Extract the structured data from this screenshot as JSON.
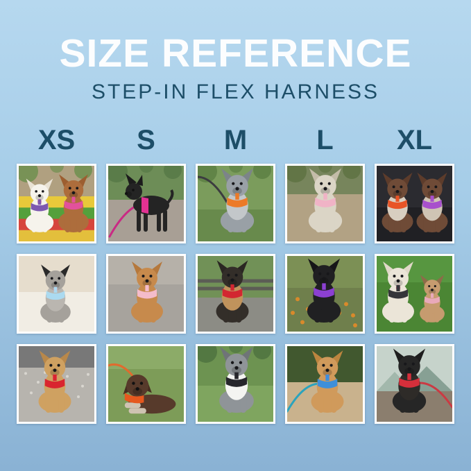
{
  "background": {
    "top": "#b6d8ef",
    "middle": "#a6cde8",
    "bottom": "#8ab2d4"
  },
  "header": {
    "title": "SIZE REFERENCE",
    "title_color": "#fcfdfe",
    "subtitle": "STEP-IN FLEX HARNESS",
    "accent_color": "#1d4e68"
  },
  "sizes": [
    "XS",
    "S",
    "M",
    "L",
    "XL"
  ],
  "frame_color": "#ffffff",
  "photos": [
    {
      "id": "r1c1",
      "size": "XS",
      "desc": "White bichon with purple harness and apricot poodle with pink harness on a colorful picnic blanket under a tree",
      "scene": {
        "sky": "#b0a080",
        "ground": "#e4bf3e",
        "horizon": 40,
        "foliage": "#6f8f4f",
        "stripes": [
          "#e8c93a",
          "#54a03c",
          "#d6453c",
          "#e3bf3c"
        ]
      },
      "dogs": [
        {
          "pose": "sit",
          "x": 30,
          "s": 0.88,
          "body": "#f6f3ec",
          "ear": "#e9e2d4",
          "harness": "#7d58b0",
          "tongue": true
        },
        {
          "pose": "sit",
          "x": 79,
          "s": 0.95,
          "body": "#ad6d3c",
          "ear": "#9c5e30",
          "harness": "#e2519c"
        }
      ]
    },
    {
      "id": "r1c2",
      "size": "S",
      "desc": "Black miniature pinscher mix in a hot pink harness with pink leash standing on a rock",
      "scene": {
        "sky": "#6d8d57",
        "ground": "#a89f95",
        "horizon": 45,
        "foliage": "#577946"
      },
      "dogs": [
        {
          "pose": "stand",
          "x": 62,
          "s": 1.0,
          "body": "#242424",
          "ear": "#1c1c1c",
          "harness": "#e23293",
          "leash": {
            "color": "#c92a84",
            "to": [
              2,
              102
            ]
          }
        }
      ]
    },
    {
      "id": "r1c3",
      "size": "M",
      "desc": "Blue merle puppy wearing an orange harness with dark leash in green grass",
      "scene": {
        "sky": "#7b9c5c",
        "ground": "#688a4c",
        "horizon": 58,
        "foliage": "#5d8043"
      },
      "dogs": [
        {
          "pose": "sit",
          "x": 57,
          "s": 1.05,
          "body": "#99a0a6",
          "ear": "#7c8489",
          "chest": "#c3c7ca",
          "harness": "#ec7a28",
          "leash": {
            "color": "#3c3c40",
            "to": [
              0,
              16
            ]
          }
        }
      ]
    },
    {
      "id": "r1c4",
      "size": "L",
      "desc": "Whippet sitting on a dirt park path wearing a light pink harness",
      "scene": {
        "sky": "#77855c",
        "ground": "#b2a284",
        "horizon": 38,
        "foliage": "#5e7242"
      },
      "dogs": [
        {
          "pose": "sit",
          "x": 55,
          "s": 1.05,
          "body": "#dbd5c6",
          "ear": "#c4bca9",
          "harness": "#f0b3c6"
        }
      ]
    },
    {
      "id": "r1c5",
      "size": "XL",
      "desc": "Two German Shorthaired Pointers sitting in a dark car, one in an orange harness and one in a purple harness",
      "scene": {
        "sky": "#2b2b30",
        "ground": "#202024",
        "horizon": 55
      },
      "dogs": [
        {
          "pose": "sit",
          "x": 30,
          "s": 0.98,
          "body": "#6f4b37",
          "ear": "#5d3c2b",
          "chest": "#d8cec0",
          "harness": "#e85426"
        },
        {
          "pose": "sit",
          "x": 80,
          "s": 0.98,
          "body": "#6f4b37",
          "ear": "#5d3c2b",
          "chest": "#cfc4b4",
          "harness": "#a850cc"
        }
      ]
    },
    {
      "id": "r2c1",
      "size": "XS",
      "desc": "Small grey and white dog with black ears in a light blue harness lying on a cream bed",
      "scene": {
        "sky": "#e6ddcd",
        "ground": "#f1ede4",
        "horizon": 48
      },
      "dogs": [
        {
          "pose": "sit",
          "x": 53,
          "s": 0.95,
          "body": "#a5a19b",
          "ear": "#2a2a2a",
          "chest": "#bab6b0",
          "harness": "#abdaf0",
          "tongue": true
        }
      ]
    },
    {
      "id": "r2c2",
      "size": "S",
      "desc": "Golden retriever puppy in a pink harness sitting on grey pavement",
      "scene": {
        "sky": "#b6b1a9",
        "ground": "#a7a39d",
        "horizon": 38
      },
      "dogs": [
        {
          "pose": "sit",
          "x": 56,
          "s": 1.0,
          "body": "#c78a4c",
          "ear": "#b5783c",
          "harness": "#f4bccb"
        }
      ]
    },
    {
      "id": "r2c3",
      "size": "M",
      "desc": "Black and tan chihuahua mix in a red harness sitting beside a park bench",
      "scene": {
        "sky": "#719157",
        "ground": "#8c8c85",
        "horizon": 55,
        "bench": "#5c5c55"
      },
      "dogs": [
        {
          "pose": "sit",
          "x": 50,
          "s": 1.02,
          "body": "#332e29",
          "ear": "#2a2622",
          "chest": "#c0935c",
          "harness": "#d22731"
        }
      ]
    },
    {
      "id": "r2c4",
      "size": "L",
      "desc": "Black lab puppy in a purple harness sitting on grass with autumn leaves",
      "scene": {
        "sky": "#7c9055",
        "ground": "#6f7f4c",
        "horizon": 42,
        "leaves": "#d98a2b"
      },
      "dogs": [
        {
          "pose": "sit",
          "x": 53,
          "s": 1.05,
          "body": "#202022",
          "ear": "#161618",
          "harness": "#8c40d2"
        }
      ]
    },
    {
      "id": "r2c5",
      "size": "XL",
      "desc": "White doodle in a black harness and fawn French bulldog in a pink harness sitting on green grass",
      "scene": {
        "sky": "#579640",
        "ground": "#4b8634",
        "horizon": 35
      },
      "dogs": [
        {
          "pose": "sit",
          "x": 31,
          "s": 1.0,
          "body": "#ebe5d8",
          "ear": "#e0d8c8",
          "harness": "#35353a",
          "tongue": true
        },
        {
          "pose": "sit",
          "x": 80,
          "s": 0.78,
          "body": "#c69b6f",
          "ear": "#8d6b49",
          "harness": "#e9a9ba"
        }
      ]
    },
    {
      "id": "r3c1",
      "size": "XS",
      "desc": "Tan yorkie terrier mix in a red harness smiling on a grey shag rug",
      "scene": {
        "sky": "#787878",
        "ground": "#b7b4ae",
        "horizon": 28,
        "speckle": "#d9d6d0"
      },
      "dogs": [
        {
          "pose": "sit",
          "x": 52,
          "s": 1.02,
          "body": "#cfa161",
          "ear": "#b9884a",
          "harness": "#d9252f",
          "tongue": true
        }
      ]
    },
    {
      "id": "r3c2",
      "size": "S",
      "desc": "Brown pointer puppy in an orange harness with orange leash lying in the grass",
      "scene": {
        "sky": "#8cab68",
        "ground": "#7d9c58",
        "horizon": 30
      },
      "dogs": [
        {
          "pose": "lie",
          "x": 56,
          "s": 1.15,
          "body": "#573a2b",
          "ear": "#462d20",
          "chest": "#cfc3b2",
          "harness": "#e5581e",
          "leash": {
            "color": "#e06b2e",
            "to": [
              0,
              28
            ]
          }
        }
      ]
    },
    {
      "id": "r3c3",
      "size": "M",
      "desc": "Blue merle border collie with white chest wearing a black harness on grass",
      "scene": {
        "sky": "#6d9351",
        "ground": "#7fa55f",
        "horizon": 52,
        "foliage": "#4f7340"
      },
      "dogs": [
        {
          "pose": "sit",
          "x": 56,
          "s": 1.08,
          "body": "#8f9498",
          "ear": "#6f7478",
          "chest": "#f4f4f1",
          "harness": "#26262b"
        }
      ]
    },
    {
      "id": "r3c4",
      "size": "L",
      "desc": "Apricot doodle in a blue harness with teal leash sitting in front of a hedge",
      "scene": {
        "sky": "#41582f",
        "ground": "#c9b28d",
        "horizon": 48
      },
      "dogs": [
        {
          "pose": "sit",
          "x": 58,
          "s": 1.02,
          "body": "#d09a5b",
          "ear": "#bc853f",
          "harness": "#3e8fd9",
          "tongue": true,
          "leash": {
            "color": "#2aa3bd",
            "to": [
              0,
              94
            ]
          }
        }
      ]
    },
    {
      "id": "r3c5",
      "size": "XL",
      "desc": "Black and tan pinscher in a red harness with red leash on a rocky mountain overlook",
      "scene": {
        "sky": "#c6d3cb",
        "ground": "#8b7e6e",
        "horizon": 60,
        "mountains": [
          "#a2b8ac",
          "#87a094"
        ]
      },
      "dogs": [
        {
          "pose": "sit",
          "x": 47,
          "s": 1.05,
          "body": "#262626",
          "ear": "#1d1d1d",
          "chest": "#2e2b28",
          "harness": "#d52f3b",
          "leash": {
            "color": "#cb3a43",
            "to": [
              109,
              88
            ]
          }
        }
      ]
    }
  ]
}
